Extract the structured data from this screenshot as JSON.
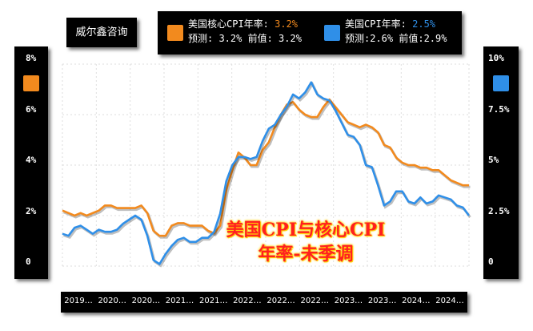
{
  "brand": {
    "text": "威尔鑫咨询"
  },
  "legend": {
    "core": {
      "line1": "美国核心CPI年率: ",
      "latest": "3.2%",
      "line2": "预测: 3.2% 前值: 3.2%",
      "color": "#f28a1e"
    },
    "cpi": {
      "line1": "美国CPI年率: ",
      "latest": "2.5%",
      "line2": "预测:2.6% 前值:2.9%",
      "color": "#2f8fe8"
    }
  },
  "overlay": {
    "line1": "美国CPI与核心CPI",
    "line2": "年率-未季调"
  },
  "colors": {
    "core": "#f28a1e",
    "cpi": "#2f8fe8",
    "grid": "#dedede",
    "panel": "#000000"
  },
  "chart_data": {
    "type": "line",
    "x": [
      "2019-01",
      "2019-02",
      "2019-03",
      "2019-04",
      "2019-05",
      "2019-06",
      "2019-07",
      "2019-08",
      "2019-09",
      "2019-10",
      "2019-11",
      "2019-12",
      "2020-01",
      "2020-02",
      "2020-03",
      "2020-04",
      "2020-05",
      "2020-06",
      "2020-07",
      "2020-08",
      "2020-09",
      "2020-10",
      "2020-11",
      "2020-12",
      "2021-01",
      "2021-02",
      "2021-03",
      "2021-04",
      "2021-05",
      "2021-06",
      "2021-07",
      "2021-08",
      "2021-09",
      "2021-10",
      "2021-11",
      "2021-12",
      "2022-01",
      "2022-02",
      "2022-03",
      "2022-04",
      "2022-05",
      "2022-06",
      "2022-07",
      "2022-08",
      "2022-09",
      "2022-10",
      "2022-11",
      "2022-12",
      "2023-01",
      "2023-02",
      "2023-03",
      "2023-04",
      "2023-05",
      "2023-06",
      "2023-07",
      "2023-08",
      "2023-09",
      "2023-10",
      "2023-11",
      "2023-12",
      "2024-01",
      "2024-02",
      "2024-03",
      "2024-04",
      "2024-05",
      "2024-06",
      "2024-07",
      "2024-08"
    ],
    "x_tick_labels": [
      "2019…",
      "2020…",
      "2020…",
      "2021…",
      "2021…",
      "2022…",
      "2022…",
      "2022…",
      "2023…",
      "2023…",
      "2024…",
      "2024…"
    ],
    "series": [
      {
        "axis": "left",
        "values": [
          2.2,
          2.1,
          2.0,
          2.1,
          2.0,
          2.1,
          2.2,
          2.4,
          2.4,
          2.3,
          2.3,
          2.3,
          2.3,
          2.4,
          2.1,
          1.4,
          1.2,
          1.2,
          1.6,
          1.7,
          1.7,
          1.6,
          1.6,
          1.6,
          1.4,
          1.3,
          1.6,
          3.0,
          3.8,
          4.5,
          4.3,
          4.0,
          4.0,
          4.6,
          4.9,
          5.5,
          6.0,
          6.4,
          6.5,
          6.2,
          6.0,
          5.9,
          5.9,
          6.3,
          6.6,
          6.3,
          6.0,
          5.7,
          5.6,
          5.5,
          5.6,
          5.5,
          5.3,
          4.8,
          4.7,
          4.3,
          4.1,
          4.0,
          4.0,
          3.9,
          3.9,
          3.8,
          3.8,
          3.6,
          3.4,
          3.3,
          3.2,
          3.2
        ]
      },
      {
        "axis": "right",
        "values": [
          1.6,
          1.5,
          1.9,
          2.0,
          1.8,
          1.6,
          1.8,
          1.7,
          1.7,
          1.8,
          2.1,
          2.3,
          2.5,
          2.3,
          1.5,
          0.3,
          0.1,
          0.6,
          1.0,
          1.3,
          1.4,
          1.2,
          1.2,
          1.4,
          1.4,
          1.7,
          2.6,
          4.2,
          5.0,
          5.4,
          5.4,
          5.3,
          5.4,
          6.2,
          6.8,
          7.0,
          7.5,
          7.9,
          8.5,
          8.3,
          8.6,
          9.1,
          8.5,
          8.3,
          8.2,
          7.7,
          7.1,
          6.5,
          6.4,
          6.0,
          5.0,
          4.9,
          4.0,
          3.0,
          3.2,
          3.7,
          3.7,
          3.2,
          3.1,
          3.4,
          3.1,
          3.2,
          3.5,
          3.4,
          3.3,
          3.0,
          2.9,
          2.5
        ]
      }
    ],
    "y_left": {
      "ticks": [
        "8%",
        "6%",
        "4%",
        "2%",
        "0"
      ],
      "min": 0,
      "max": 8
    },
    "y_right": {
      "ticks": [
        "10%",
        "7.5%",
        "5%",
        "2.5%",
        "0"
      ],
      "min": 0,
      "max": 10
    },
    "grid": true
  }
}
